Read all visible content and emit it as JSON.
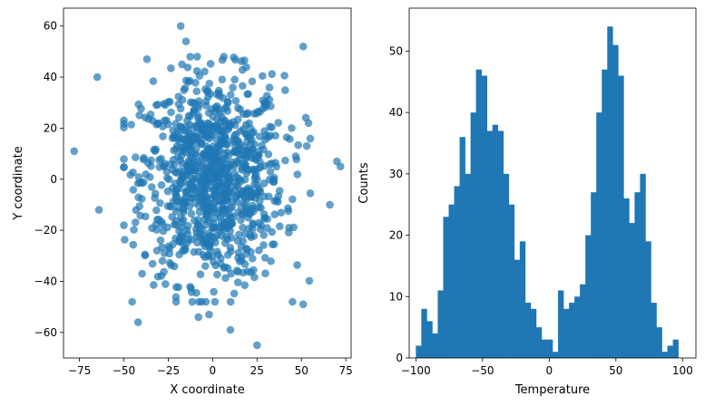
{
  "chart_data": [
    {
      "type": "scatter",
      "xlabel": "X coordinate",
      "ylabel": "Y coordinate",
      "xlim": [
        -84,
        78
      ],
      "ylim": [
        -70,
        67
      ],
      "xticks": [
        -75,
        -50,
        -25,
        0,
        25,
        50,
        75
      ],
      "yticks": [
        -60,
        -40,
        -20,
        0,
        20,
        40,
        60
      ],
      "color": "#1f77b4",
      "alpha": 0.7,
      "n_points": 1000,
      "distribution": {
        "center_x": 0,
        "center_y": 0,
        "spread_x": 20,
        "spread_y": 20
      },
      "outliers": [
        {
          "x": -78,
          "y": 11
        },
        {
          "x": -65,
          "y": 40
        },
        {
          "x": -64,
          "y": -12
        },
        {
          "x": -18,
          "y": 60
        },
        {
          "x": 51,
          "y": 52
        },
        {
          "x": 72,
          "y": 5
        },
        {
          "x": 70,
          "y": 7
        },
        {
          "x": 66,
          "y": -10
        },
        {
          "x": 51,
          "y": -49
        },
        {
          "x": 25,
          "y": -65
        },
        {
          "x": -42,
          "y": -56
        },
        {
          "x": 10,
          "y": -59
        },
        {
          "x": -15,
          "y": 54
        },
        {
          "x": -37,
          "y": 47
        },
        {
          "x": 54,
          "y": 22
        },
        {
          "x": -8,
          "y": -54
        },
        {
          "x": -2,
          "y": -53
        },
        {
          "x": 53,
          "y": 13
        }
      ]
    },
    {
      "type": "bar",
      "subtype": "histogram",
      "xlabel": "Temperature",
      "ylabel": "Counts",
      "xlim": [
        -105,
        110
      ],
      "ylim": [
        0,
        57
      ],
      "xticks": [
        -100,
        -50,
        0,
        50,
        100
      ],
      "yticks": [
        0,
        10,
        20,
        30,
        40,
        50
      ],
      "color": "#1f77b4",
      "bin_start": -100,
      "bin_width": 4.1,
      "values": [
        2,
        8,
        6,
        4,
        11,
        23,
        25,
        28,
        36,
        30,
        40,
        47,
        46,
        37,
        38,
        37,
        30,
        25,
        16,
        19,
        9,
        8,
        5,
        3,
        3,
        1,
        11,
        8,
        9,
        10,
        12,
        20,
        27,
        40,
        47,
        54,
        51,
        46,
        26,
        22,
        27,
        30,
        19,
        9,
        5,
        1,
        2,
        3
      ]
    }
  ]
}
